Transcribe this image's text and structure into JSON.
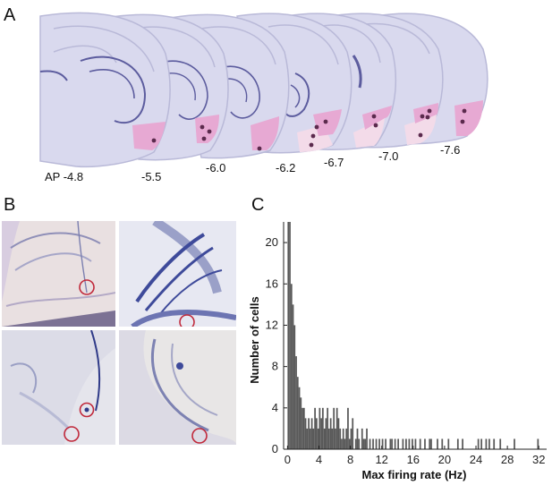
{
  "panels": {
    "a": "A",
    "b": "B",
    "c": "C"
  },
  "sections": {
    "labels": [
      "AP -4.8",
      "-5.5",
      "-6.0",
      "-6.2",
      "-6.7",
      "-7.0",
      "-7.6"
    ],
    "tissue_color": "#d9d9ee",
    "outline_color": "#b9b9d8",
    "structure_color": "#5c5c9e",
    "recording_zone_color": "#e7a9d3",
    "recording_zone_light_color": "#f3dbe9",
    "recording_site_color": "#5b2a4d"
  },
  "histology": {
    "stain_color": "#4f5aa3",
    "marker_color": "#c0283a"
  },
  "chart_data": {
    "type": "bar",
    "title": "",
    "xlabel": "Max firing rate (Hz)",
    "ylabel": "Number of cells",
    "xlim": [
      -0.5,
      33
    ],
    "ylim": [
      0,
      22
    ],
    "xticks": [
      0,
      4,
      8,
      12,
      16,
      20,
      24,
      28,
      32
    ],
    "yticks": [
      0,
      4,
      8,
      12,
      16,
      20
    ],
    "bar_color": "#595959",
    "bin_width": 0.2,
    "bin_starts": [
      0,
      0.2,
      0.4,
      0.6,
      0.8,
      1.0,
      1.2,
      1.4,
      1.6,
      1.8,
      2.0,
      2.2,
      2.4,
      2.6,
      2.8,
      3.0,
      3.2,
      3.4,
      3.6,
      3.8,
      4.0,
      4.2,
      4.4,
      4.6,
      4.8,
      5.0,
      5.2,
      5.4,
      5.6,
      5.8,
      6.0,
      6.2,
      6.4,
      6.6,
      6.8,
      7.0,
      7.2,
      7.4,
      7.6,
      7.8,
      8.0,
      8.2,
      8.6,
      8.8,
      9.0,
      9.4,
      9.6,
      9.8,
      10.0,
      10.4,
      10.8,
      11.2,
      11.6,
      12.0,
      12.4,
      13.0,
      13.2,
      13.6,
      14.0,
      14.6,
      15.0,
      15.4,
      15.8,
      16.2,
      16.8,
      17.4,
      18.0,
      18.2,
      19.0,
      19.6,
      20.4,
      21.6,
      22.2,
      24.2,
      24.6,
      25.2,
      25.6,
      26.2,
      27.0,
      28.8,
      31.8
    ],
    "counts": [
      22,
      22,
      16,
      14,
      12,
      9,
      7,
      6,
      5,
      4,
      4,
      3,
      2,
      3,
      2,
      3,
      2,
      4,
      3,
      2,
      4,
      3,
      4,
      2,
      3,
      4,
      2,
      3,
      2,
      4,
      2,
      4,
      3,
      2,
      1,
      2,
      1,
      2,
      4,
      1,
      2,
      3,
      1,
      2,
      1,
      2,
      1,
      1,
      2,
      1,
      1,
      1,
      1,
      1,
      1,
      1,
      1,
      1,
      1,
      1,
      1,
      1,
      1,
      1,
      1,
      1,
      1,
      1,
      1,
      1,
      1,
      1,
      1,
      1,
      1,
      1,
      1,
      1,
      1,
      1,
      1
    ]
  }
}
